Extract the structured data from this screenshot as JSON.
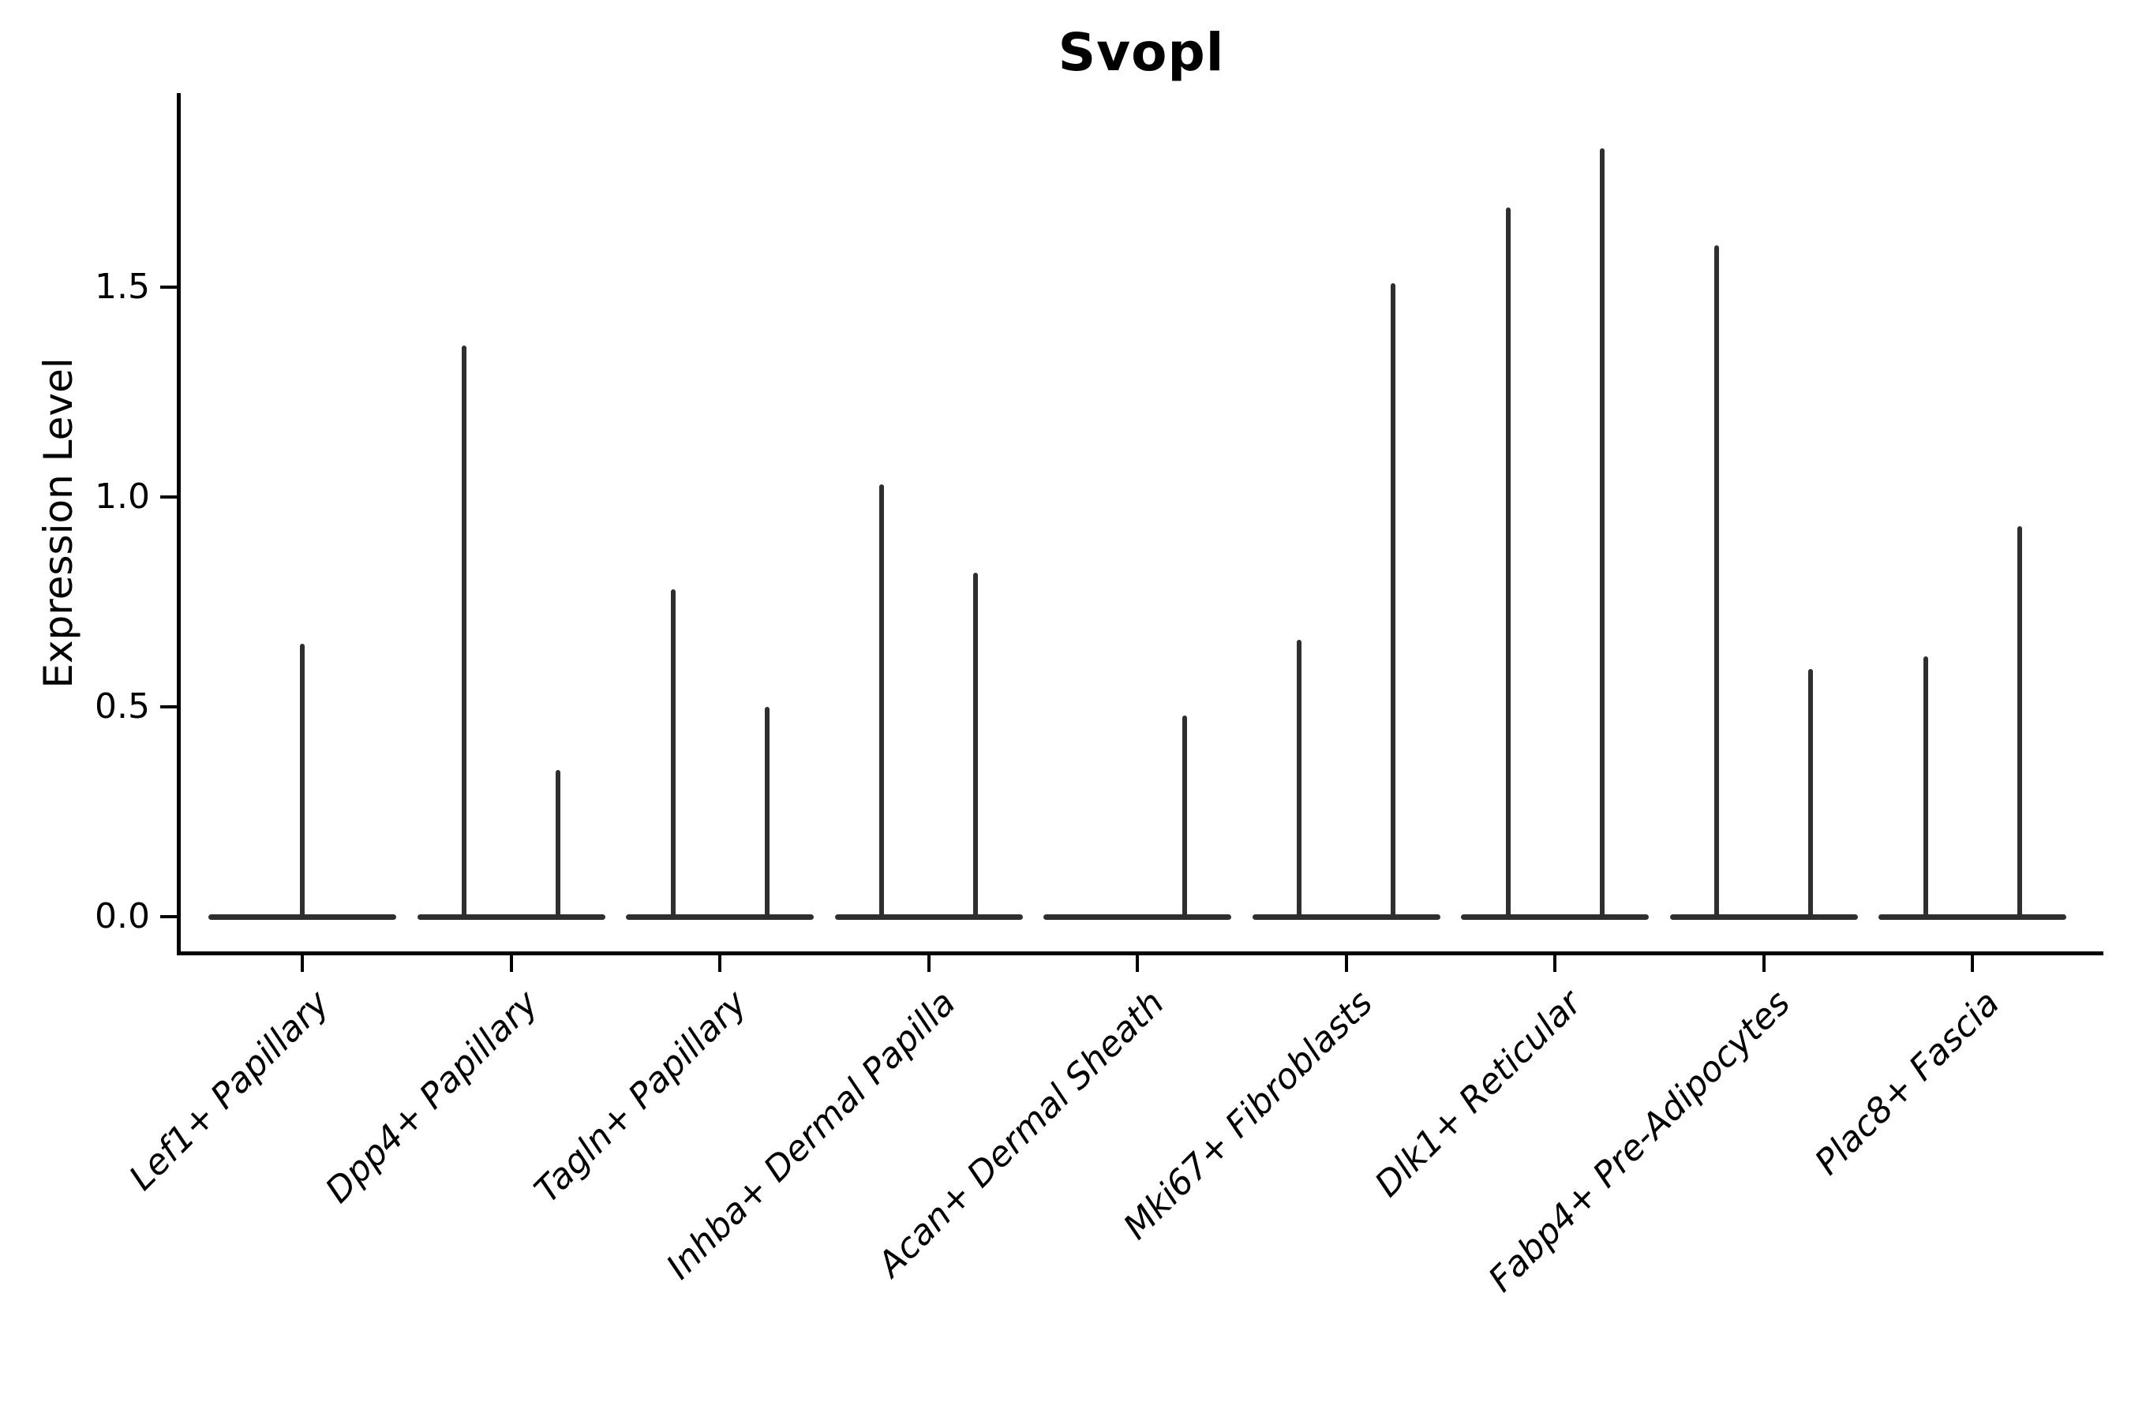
{
  "chart_data": {
    "type": "violin",
    "title": "Svopl",
    "ylabel": "Expression Level",
    "xlabel": "",
    "ytick_values": [
      0.0,
      0.5,
      1.0,
      1.5
    ],
    "ytick_labels": [
      "0.0",
      "0.5",
      "1.0",
      "1.5"
    ],
    "ylim": [
      0,
      1.96
    ],
    "grid": false,
    "legend": "none",
    "violin_color": "#2f2f2f",
    "axis_color": "#000000",
    "categories": [
      "Lef1+ Papillary",
      "Dpp4+ Papillary",
      "Tagln+ Papillary",
      "Inhba+ Dermal Papilla",
      "Acan+ Dermal Sheath",
      "Mki67+ Fibroblasts",
      "Dlk1+ Reticular",
      "Fabp4+ Pre-Adipocytes",
      "Plac8+ Fascia"
    ],
    "series": [
      {
        "category": "Lef1+ Papillary",
        "violins": [
          {
            "position": "center",
            "max": 0.65
          }
        ]
      },
      {
        "category": "Dpp4+ Papillary",
        "violins": [
          {
            "position": "left",
            "max": 1.36
          },
          {
            "position": "right",
            "max": 0.35
          }
        ]
      },
      {
        "category": "Tagln+ Papillary",
        "violins": [
          {
            "position": "left",
            "max": 0.78
          },
          {
            "position": "right",
            "max": 0.5
          }
        ]
      },
      {
        "category": "Inhba+ Dermal Papilla",
        "violins": [
          {
            "position": "left",
            "max": 1.03
          },
          {
            "position": "right",
            "max": 0.82
          }
        ]
      },
      {
        "category": "Acan+ Dermal Sheath",
        "violins": [
          {
            "position": "left",
            "max": 0.0
          },
          {
            "position": "right",
            "max": 0.48
          }
        ]
      },
      {
        "category": "Mki67+ Fibroblasts",
        "violins": [
          {
            "position": "left",
            "max": 0.66
          },
          {
            "position": "right",
            "max": 1.51
          }
        ]
      },
      {
        "category": "Dlk1+ Reticular",
        "violins": [
          {
            "position": "left",
            "max": 1.69
          },
          {
            "position": "right",
            "max": 1.83
          }
        ]
      },
      {
        "category": "Fabp4+ Pre-Adipocytes",
        "violins": [
          {
            "position": "left",
            "max": 1.6
          },
          {
            "position": "right",
            "max": 0.59
          }
        ]
      },
      {
        "category": "Plac8+ Fascia",
        "violins": [
          {
            "position": "left",
            "max": 0.62
          },
          {
            "position": "right",
            "max": 0.93
          }
        ]
      }
    ]
  }
}
